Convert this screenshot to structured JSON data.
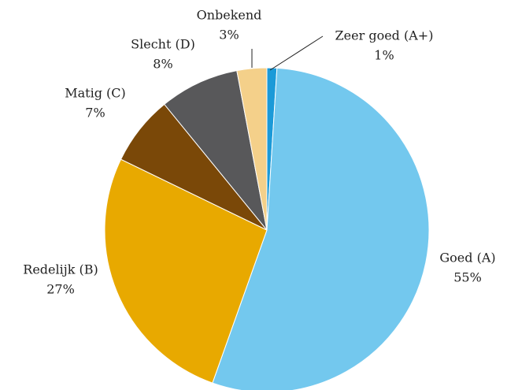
{
  "chart_data": {
    "type": "pie",
    "categories": [
      "Zeer goed (A+)",
      "Goed (A)",
      "Redelijk (B)",
      "Matig (C)",
      "Slecht (D)",
      "Onbekend"
    ],
    "values": [
      1,
      55,
      27,
      7,
      8,
      3
    ],
    "value_labels": [
      "1%",
      "55%",
      "27%",
      "7%",
      "8%",
      "3%"
    ],
    "colors": [
      "#1b9ad8",
      "#73c8ee",
      "#e8a900",
      "#7a4808",
      "#58585a",
      "#f4d08a"
    ]
  }
}
